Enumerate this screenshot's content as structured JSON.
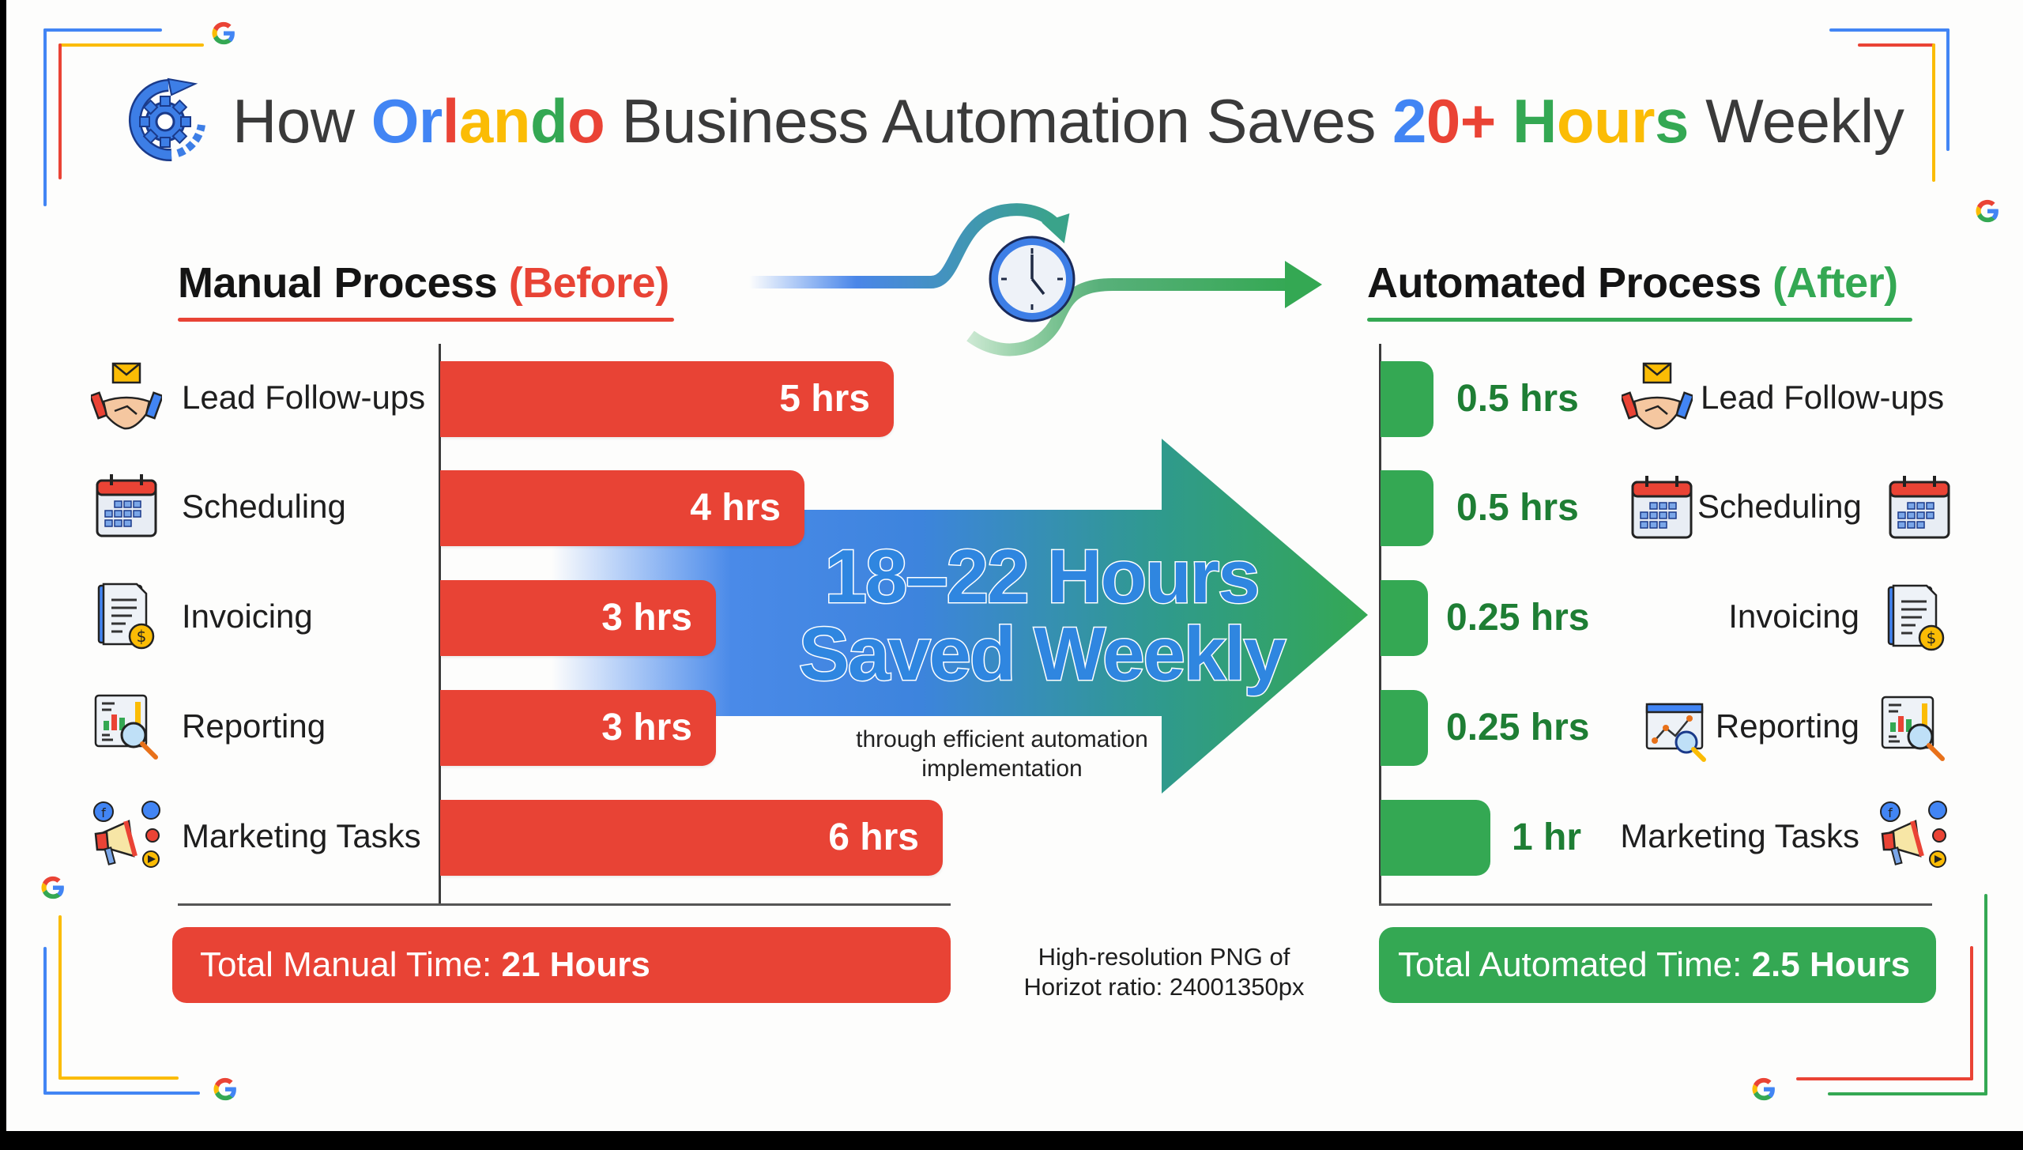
{
  "title": {
    "parts": [
      {
        "text": "How ",
        "color": "#3a3a3a"
      },
      {
        "text": "O",
        "color": "#4285f4"
      },
      {
        "text": "r",
        "color": "#4285f4"
      },
      {
        "text": "l",
        "color": "#ea4335"
      },
      {
        "text": "a",
        "color": "#fbbc05"
      },
      {
        "text": "n",
        "color": "#fbbc05"
      },
      {
        "text": "d",
        "color": "#34a853"
      },
      {
        "text": "o",
        "color": "#ea4335"
      },
      {
        "text": " Business Automation Saves ",
        "color": "#3a3a3a"
      },
      {
        "text": "2",
        "color": "#4285f4"
      },
      {
        "text": "0+",
        "color": "#ea4335"
      },
      {
        "text": " ",
        "color": "#3a3a3a"
      },
      {
        "text": "H",
        "color": "#34a853"
      },
      {
        "text": "our",
        "color": "#fbbc05"
      },
      {
        "text": "s",
        "color": "#34a853"
      },
      {
        "text": " Weekly",
        "color": "#3a3a3a"
      }
    ],
    "full_text": "How Orlando Business Automation Saves 20+ Hours Weekly",
    "icon": "gear-cycle-icon"
  },
  "manual": {
    "heading": "Manual Process",
    "heading_tag": "(Before)",
    "accent": "#e84335",
    "tasks": [
      {
        "label": "Lead Follow-ups",
        "value": "5 hrs",
        "hours": 5,
        "icon": "handshake-email-icon"
      },
      {
        "label": "Scheduling",
        "value": "4 hrs",
        "hours": 4,
        "icon": "calendar-icon"
      },
      {
        "label": "Invoicing",
        "value": "3 hrs",
        "hours": 3,
        "icon": "invoice-dollar-icon"
      },
      {
        "label": "Reporting",
        "value": "3 hrs",
        "hours": 3,
        "icon": "report-magnifier-icon"
      },
      {
        "label": "Marketing Tasks",
        "value": "6 hrs",
        "hours": 6,
        "icon": "megaphone-social-icon"
      }
    ],
    "total_label": "Total Manual Time: ",
    "total_value": "21 Hours"
  },
  "automated": {
    "heading": "Automated Process",
    "heading_tag": "(After)",
    "accent": "#34a853",
    "tasks": [
      {
        "label": "Lead Follow-ups",
        "value": "0.5 hrs",
        "hours": 0.5,
        "icon": "handshake-email-icon"
      },
      {
        "label": "Scheduling",
        "value": "0.5 hrs",
        "hours": 0.5,
        "icon": "calendar-icon"
      },
      {
        "label": "Invoicing",
        "value": "0.25 hrs",
        "hours": 0.25,
        "icon": "invoice-dollar-icon"
      },
      {
        "label": "Reporting",
        "value": "0.25 hrs",
        "hours": 0.25,
        "icon": "report-magnifier-icon"
      },
      {
        "label": "Marketing Tasks",
        "value": "1 hr",
        "hours": 1,
        "icon": "megaphone-social-icon"
      }
    ],
    "total_label": "Total Automated Time: ",
    "total_value": "2.5 Hours"
  },
  "center": {
    "line1": "18–22 Hours",
    "line2": "Saved Weekly",
    "sub1": "through efficient automation",
    "sub2": "implementation",
    "clock_icon": "clock-icon"
  },
  "footer": {
    "line1": "High-resolution PNG of",
    "line2": "Horizot ratio: 24001350px"
  },
  "colors": {
    "google_blue": "#4285f4",
    "google_red": "#ea4335",
    "google_yellow": "#fbbc05",
    "google_green": "#34a853",
    "manual_bar": "#e84335",
    "auto_bar": "#34a853",
    "auto_value_text": "#1e7e34"
  }
}
